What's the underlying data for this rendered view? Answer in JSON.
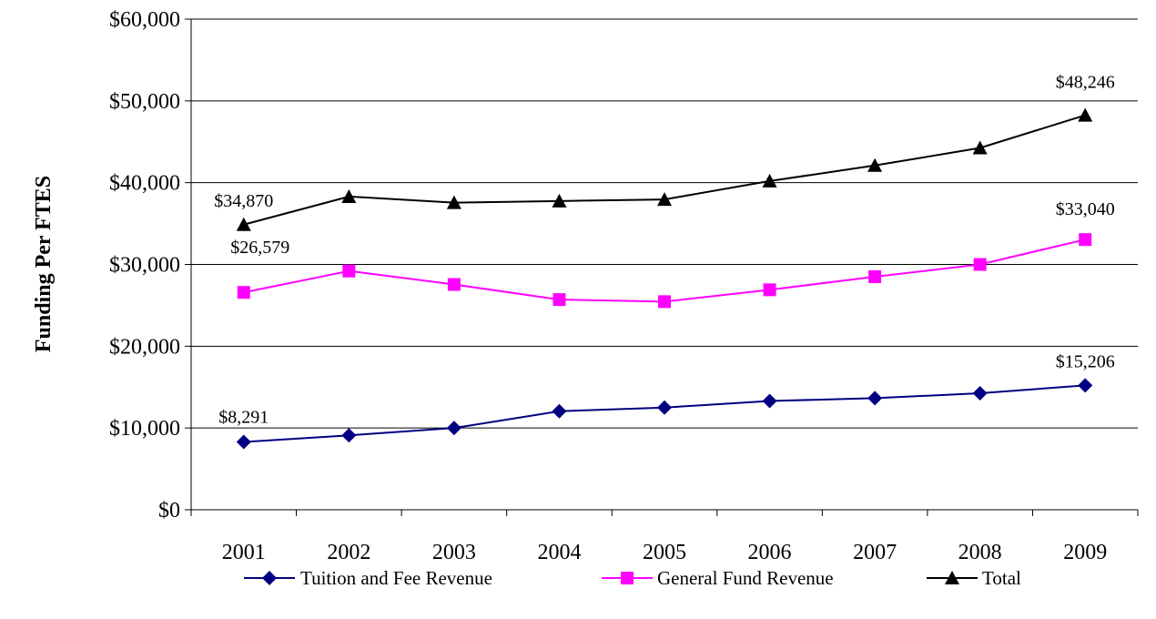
{
  "chart_data": {
    "type": "line",
    "title": "",
    "xlabel": "",
    "ylabel": "Funding Per FTES",
    "ylim": [
      0,
      60000
    ],
    "y_ticks": [
      0,
      10000,
      20000,
      30000,
      40000,
      50000,
      60000
    ],
    "y_tick_labels": [
      "$0",
      "$10,000",
      "$20,000",
      "$30,000",
      "$40,000",
      "$50,000",
      "$60,000"
    ],
    "categories": [
      "2001",
      "2002",
      "2003",
      "2004",
      "2005",
      "2006",
      "2007",
      "2008",
      "2009"
    ],
    "grid": true,
    "legend_position": "bottom",
    "series": [
      {
        "name": "Tuition and Fee Revenue",
        "color": "#000080",
        "marker": "diamond",
        "values": [
          8291,
          9100,
          10000,
          12050,
          12500,
          13300,
          13650,
          14250,
          15206
        ]
      },
      {
        "name": "General Fund Revenue",
        "color": "#FF00FF",
        "marker": "square",
        "values": [
          26579,
          29200,
          27550,
          25700,
          25450,
          26900,
          28500,
          30000,
          33040
        ]
      },
      {
        "name": "Total",
        "color": "#000000",
        "marker": "triangle",
        "values": [
          34870,
          38300,
          37550,
          37750,
          37950,
          40200,
          42100,
          44250,
          48246
        ]
      }
    ],
    "data_labels": [
      {
        "series": 0,
        "index": 0,
        "text": "$8,291"
      },
      {
        "series": 0,
        "index": 8,
        "text": "$15,206"
      },
      {
        "series": 1,
        "index": 0,
        "text": "$26,579"
      },
      {
        "series": 1,
        "index": 8,
        "text": "$33,040"
      },
      {
        "series": 2,
        "index": 0,
        "text": "$34,870"
      },
      {
        "series": 2,
        "index": 8,
        "text": "$48,246"
      }
    ]
  }
}
